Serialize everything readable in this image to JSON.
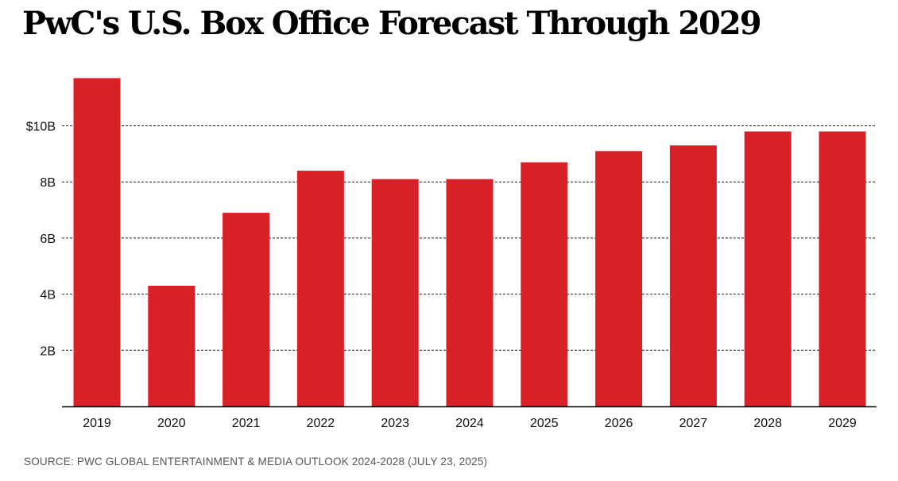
{
  "title": "PwC's U.S. Box Office Forecast Through 2029",
  "source": "SOURCE: PWC GLOBAL ENTERTAINMENT & MEDIA OUTLOOK 2024-2028 (JULY 23, 2025)",
  "colors": {
    "bar": "#d82027",
    "gridline": "#222222",
    "axis": "#000000"
  },
  "chart_data": {
    "type": "bar",
    "title": "PwC's U.S. Box Office Forecast Through 2029",
    "xlabel": "",
    "ylabel": "",
    "unit": "billion USD",
    "categories": [
      "2019",
      "2020",
      "2021",
      "2022",
      "2023",
      "2024",
      "2025",
      "2026",
      "2027",
      "2028",
      "2029"
    ],
    "values": [
      11.7,
      4.3,
      6.9,
      8.4,
      8.1,
      8.1,
      8.7,
      9.1,
      9.3,
      9.8,
      9.8
    ],
    "ylim": [
      0,
      12
    ],
    "yticks": [
      2,
      4,
      6,
      8,
      10
    ],
    "ytick_labels": [
      "2B",
      "4B",
      "6B",
      "8B",
      "$10B"
    ],
    "grid": "horizontal dashed",
    "legend": "none"
  }
}
